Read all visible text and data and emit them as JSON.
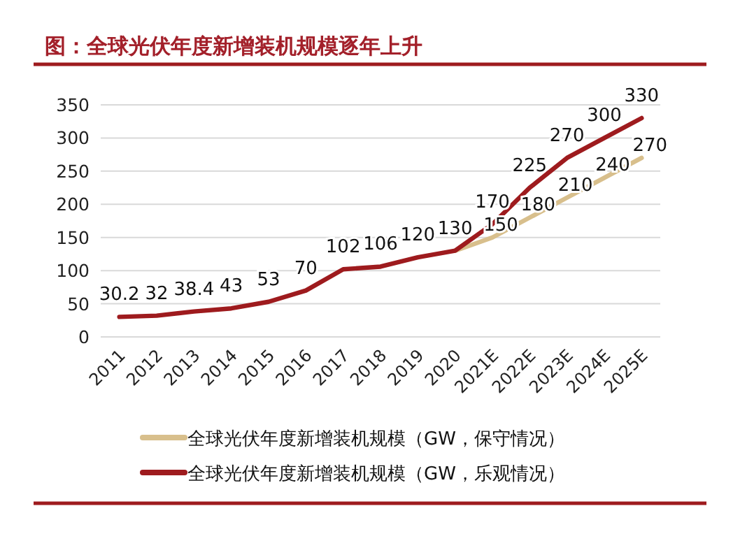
{
  "chart_data": {
    "type": "line",
    "title": "图：全球光伏年度新增装机规模逐年上升",
    "categories": [
      "2011",
      "2012",
      "2013",
      "2014",
      "2015",
      "2016",
      "2017",
      "2018",
      "2019",
      "2020",
      "2021E",
      "2022E",
      "2023E",
      "2024E",
      "2025E"
    ],
    "series": [
      {
        "name": "全球光伏年度新增装机规模（GW，保守情况）",
        "color": "#d8bf8c",
        "values": [
          null,
          null,
          null,
          null,
          null,
          null,
          null,
          null,
          null,
          130,
          150,
          180,
          210,
          240,
          270
        ],
        "value_labels": [
          null,
          null,
          null,
          null,
          null,
          null,
          null,
          null,
          null,
          null,
          "150",
          "180",
          "210",
          "240",
          "270"
        ]
      },
      {
        "name": "全球光伏年度新增装机规模（GW，乐观情况）",
        "color": "#9e1b1e",
        "values": [
          30.2,
          32,
          38.4,
          43,
          53,
          70,
          102,
          106,
          120,
          130,
          170,
          225,
          270,
          300,
          330
        ],
        "value_labels": [
          "30.2",
          "32",
          "38.4",
          "43",
          "53",
          "70",
          "102",
          "106",
          "120",
          "130",
          "170",
          "225",
          "270",
          "300",
          "330"
        ]
      }
    ],
    "ylim": [
      0,
      350
    ],
    "yticks": [
      0,
      50,
      100,
      150,
      200,
      250,
      300,
      350
    ],
    "grid": "y",
    "legend": "bottom",
    "marker": "none",
    "line_style": "solid"
  }
}
